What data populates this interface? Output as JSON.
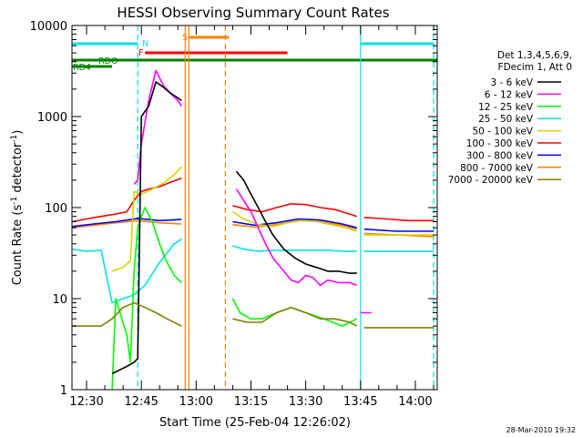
{
  "chart_data": {
    "type": "line",
    "title": "HESSI Observing Summary Count Rates",
    "xlabel": "Start Time (25-Feb-04 12:26:02)",
    "ylabel": "Count Rate (s⁻¹ detector⁻¹)",
    "ylabel_main": "Count Rate (s",
    "ylabel_sup1": "-1",
    "ylabel_mid": " detector",
    "ylabel_sup2": "-1",
    "ylabel_end": ")",
    "xlim": [
      "12:26",
      "14:06"
    ],
    "ylim": [
      1,
      10000
    ],
    "yscale": "log",
    "x_ticks": [
      "12:30",
      "12:45",
      "13:00",
      "13:15",
      "13:30",
      "13:45",
      "14:00"
    ],
    "y_ticks": [
      "1",
      "10",
      "100",
      "1000",
      "10000"
    ],
    "legend_header": [
      "Det 1,3,4,5,6,9,",
      "FDecim 1, Att 0"
    ],
    "footer": "28-Mar-2010 19:32",
    "flags": [
      {
        "label": "N",
        "color": "#00e5e5",
        "segments": [
          [
            "12:26",
            "12:44"
          ],
          [
            "13:45",
            "14:05"
          ]
        ]
      },
      {
        "label": "S",
        "color": "#ff8000",
        "segments": [
          [
            "12:58",
            "13:09"
          ]
        ]
      },
      {
        "label": "F",
        "color": "#ff0000",
        "segments": [
          [
            "12:46",
            "13:25"
          ]
        ]
      },
      {
        "label": "RDO",
        "color": "#008000",
        "segments": [
          [
            "12:26",
            "14:06"
          ]
        ]
      },
      {
        "label": "RD4",
        "color": "#008000",
        "segments": [
          [
            "12:26",
            "12:37"
          ]
        ]
      }
    ],
    "vertical_markers": [
      {
        "time": "12:44",
        "color": "#00e5e5",
        "style": "dashed"
      },
      {
        "time": "12:57",
        "color": "#ff8000",
        "style": "solid"
      },
      {
        "time": "12:58",
        "color": "#ff8000",
        "style": "solid"
      },
      {
        "time": "13:08",
        "color": "#ff8000",
        "style": "dashed"
      },
      {
        "time": "13:45",
        "color": "#00e5e5",
        "style": "solid"
      },
      {
        "time": "14:05",
        "color": "#00e5e5",
        "style": "dashed"
      }
    ],
    "series": [
      {
        "name": "3 - 6 keV",
        "color": "#000000",
        "x": [
          "12:37",
          "12:41",
          "12:43",
          "12:44",
          "12:45",
          "12:47",
          "12:49",
          "12:51",
          "12:53",
          "12:55",
          "12:56",
          null,
          "13:11",
          "13:13",
          "13:15",
          "13:17",
          "13:19",
          "13:21",
          "13:24",
          "13:27",
          "13:30",
          "13:33",
          "13:36",
          "13:39",
          "13:42",
          "13:44"
        ],
        "values": [
          1.5,
          1.8,
          2.0,
          2.2,
          1000,
          1300,
          2400,
          2100,
          1800,
          1600,
          1500,
          null,
          250,
          200,
          140,
          100,
          70,
          50,
          35,
          28,
          24,
          22,
          20,
          20,
          19,
          19
        ]
      },
      {
        "name": "6 - 12 keV",
        "color": "#ff00ff",
        "x": [
          "12:43",
          "12:44",
          "12:45",
          "12:47",
          "12:49",
          "12:51",
          "12:53",
          "12:55",
          "12:56",
          null,
          "13:11",
          "13:13",
          "13:15",
          "13:17",
          "13:19",
          "13:21",
          "13:24",
          "13:26",
          "13:28",
          "13:30",
          "13:32",
          "13:34",
          "13:36",
          "13:39",
          "13:42",
          "13:44",
          null,
          "13:45",
          "13:48"
        ],
        "values": [
          180,
          200,
          500,
          1500,
          3200,
          2200,
          1800,
          1500,
          1300,
          null,
          160,
          120,
          90,
          60,
          40,
          28,
          20,
          16,
          15,
          18,
          17,
          14,
          16,
          15,
          15,
          14,
          null,
          7,
          7
        ]
      },
      {
        "name": "12 - 25 keV",
        "color": "#00ff00",
        "x": [
          "12:37",
          "12:38",
          "12:41",
          "12:42",
          "12:43",
          "12:44",
          "12:45",
          "12:46",
          "12:48",
          "12:50",
          "12:52",
          "12:54",
          "12:56",
          null,
          "13:10",
          "13:12",
          "13:15",
          "13:18",
          "13:22",
          "13:26",
          "13:30",
          "13:35",
          "13:40",
          "13:44"
        ],
        "values": [
          1,
          10,
          4,
          2,
          20,
          60,
          80,
          100,
          70,
          40,
          25,
          18,
          15,
          null,
          10,
          7,
          6,
          6,
          7,
          8,
          7,
          6,
          5,
          6
        ]
      },
      {
        "name": "25 - 50 keV",
        "color": "#00e5e5",
        "x": [
          "12:26",
          "12:28",
          "12:30",
          "12:34",
          "12:37",
          "12:40",
          "12:43",
          "12:44",
          "12:46",
          "12:50",
          "12:54",
          "12:56",
          null,
          "13:10",
          "13:13",
          "13:17",
          "13:21",
          "13:26",
          "13:31",
          "13:36",
          "13:41",
          "13:44",
          null,
          "13:46",
          "13:52",
          "13:58",
          "14:05"
        ],
        "values": [
          35,
          34,
          33,
          34,
          9,
          10,
          11,
          12,
          14,
          25,
          40,
          45,
          null,
          38,
          35,
          33,
          34,
          34,
          34,
          34,
          33,
          33,
          null,
          33,
          33,
          33,
          33
        ]
      },
      {
        "name": "50 - 100 keV",
        "color": "#d4d400",
        "x": [
          "12:37",
          "12:40",
          "12:42",
          "12:43",
          "12:45",
          "12:48",
          "12:51",
          "12:54",
          "12:56",
          null,
          "13:10",
          "13:13",
          "13:17",
          "13:21",
          "13:25",
          "13:29",
          "13:33",
          "13:37",
          "13:41",
          "13:44",
          null,
          "13:46",
          "13:51",
          "13:56",
          "14:05"
        ],
        "values": [
          20,
          22,
          26,
          150,
          140,
          160,
          185,
          230,
          280,
          null,
          90,
          75,
          65,
          62,
          68,
          72,
          70,
          65,
          60,
          55,
          null,
          50,
          50,
          50,
          50
        ]
      },
      {
        "name": "100 - 300 keV",
        "color": "#ff0000",
        "x": [
          "12:26",
          "12:30",
          "12:34",
          "12:38",
          "12:41",
          "12:43",
          "12:45",
          "12:47",
          "12:50",
          "12:53",
          "12:56",
          null,
          "13:10",
          "13:14",
          "13:18",
          "13:22",
          "13:26",
          "13:30",
          "13:34",
          "13:38",
          "13:42",
          "13:44",
          null,
          "13:46",
          "13:52",
          "13:58",
          "14:05"
        ],
        "values": [
          70,
          75,
          80,
          85,
          90,
          120,
          150,
          160,
          170,
          190,
          210,
          null,
          105,
          95,
          90,
          100,
          110,
          108,
          100,
          95,
          85,
          80,
          null,
          78,
          75,
          72,
          72
        ]
      },
      {
        "name": "300 - 800 keV",
        "color": "#0000ff",
        "x": [
          "12:26",
          "12:32",
          "12:38",
          "12:44",
          "12:50",
          "12:56",
          null,
          "13:10",
          "13:16",
          "13:22",
          "13:28",
          "13:34",
          "13:40",
          "13:44",
          null,
          "13:46",
          "13:55",
          "14:05"
        ],
        "values": [
          62,
          66,
          70,
          76,
          72,
          74,
          null,
          70,
          64,
          68,
          75,
          73,
          66,
          60,
          null,
          58,
          55,
          55
        ]
      },
      {
        "name": "800 - 7000 keV",
        "color": "#ff8000",
        "x": [
          "12:26",
          "12:32",
          "12:38",
          "12:44",
          "12:50",
          "12:56",
          null,
          "13:10",
          "13:16",
          "13:22",
          "13:28",
          "13:34",
          "13:40",
          "13:44",
          null,
          "13:46",
          "13:55",
          "14:05"
        ],
        "values": [
          60,
          64,
          68,
          72,
          68,
          66,
          null,
          65,
          61,
          65,
          72,
          70,
          64,
          58,
          null,
          52,
          50,
          48
        ]
      },
      {
        "name": "7000 - 20000 keV",
        "color": "#808000",
        "x": [
          "12:26",
          "12:30",
          "12:34",
          "12:37",
          "12:40",
          "12:43",
          "12:46",
          "12:49",
          "12:52",
          "12:56",
          null,
          "13:10",
          "13:14",
          "13:18",
          "13:22",
          "13:26",
          "13:30",
          "13:34",
          "13:38",
          "13:42",
          "13:44",
          null,
          "13:46",
          "13:55",
          "14:05"
        ],
        "values": [
          5,
          5,
          5,
          6,
          8,
          9,
          8,
          7,
          6,
          5,
          null,
          6,
          5.5,
          5.5,
          7,
          8,
          7,
          6,
          6,
          5.5,
          5,
          null,
          4.8,
          4.8,
          4.8
        ]
      }
    ]
  }
}
